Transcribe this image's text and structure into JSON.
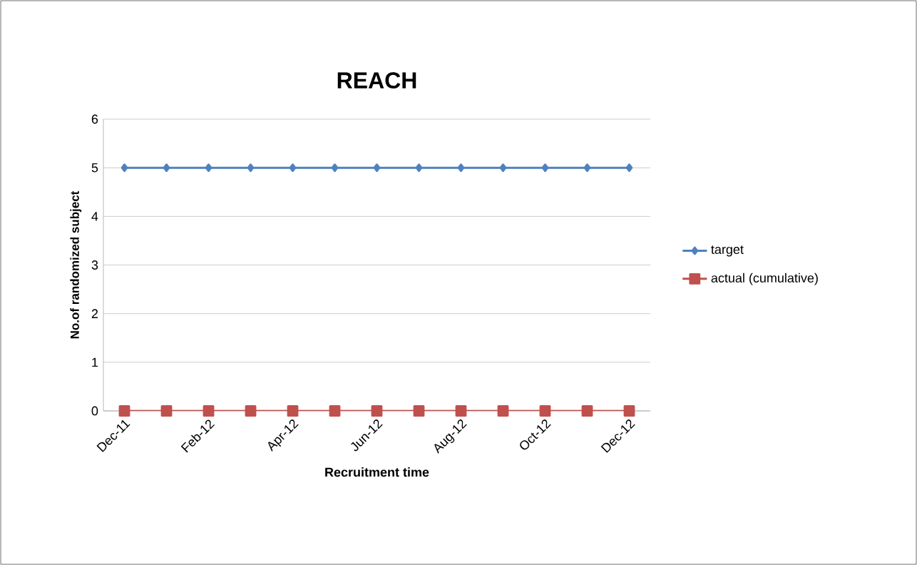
{
  "chart_data": {
    "type": "line",
    "title": "REACH",
    "xlabel": "Recruitment time",
    "ylabel": "No.of randomized subject",
    "categories": [
      "Dec-11",
      null,
      "Feb-12",
      null,
      "Apr-12",
      null,
      "Jun-12",
      null,
      "Aug-12",
      null,
      "Oct-12",
      null,
      "Dec-12"
    ],
    "series": [
      {
        "name": "target",
        "color": "#4f81bd",
        "marker": "diamond",
        "values": [
          5,
          5,
          5,
          5,
          5,
          5,
          5,
          5,
          5,
          5,
          5,
          5,
          5
        ]
      },
      {
        "name": "actual (cumulative)",
        "color": "#c0504d",
        "marker": "square",
        "values": [
          0,
          0,
          0,
          0,
          0,
          0,
          0,
          0,
          0,
          0,
          0,
          0,
          0
        ]
      }
    ],
    "ylim": [
      0,
      6
    ],
    "yticks": [
      0,
      1,
      2,
      3,
      4,
      5,
      6
    ],
    "grid": "y",
    "legend": "right"
  }
}
